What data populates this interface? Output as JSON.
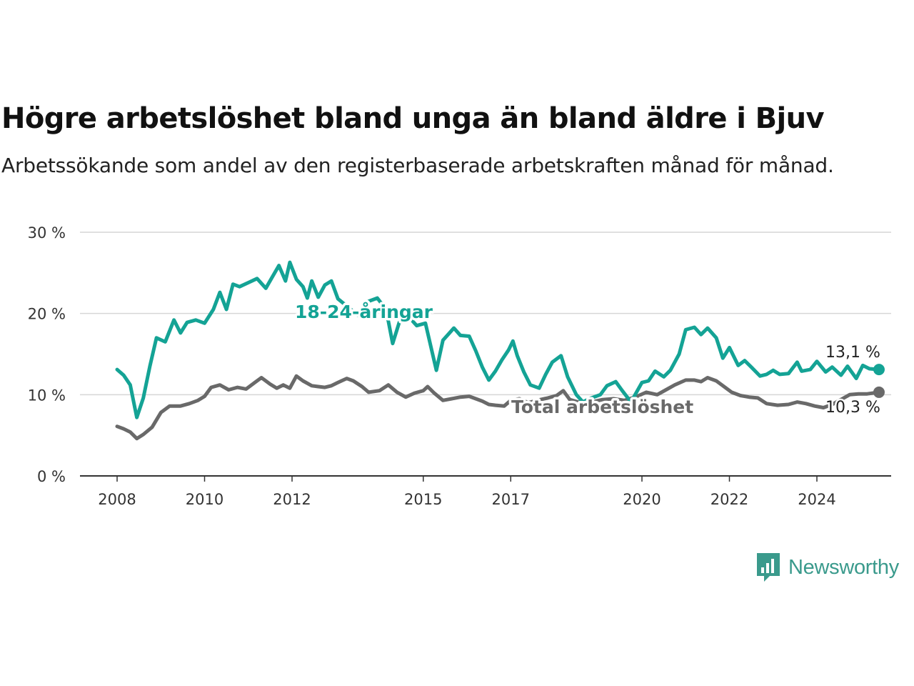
{
  "title": "Högre arbetslöshet bland unga än bland äldre i Bjuv",
  "subtitle": "Arbetssökande som andel av den registerbaserade arbetskraften månad för månad.",
  "brand": "Newsworthy",
  "chart_data": {
    "type": "line",
    "title": "Högre arbetslöshet bland unga än bland äldre i Bjuv",
    "subtitle": "Arbetssökande som andel av den registerbaserade arbetskraften månad för månad.",
    "ylim": [
      0,
      30
    ],
    "yticks": [
      0,
      10,
      20,
      30
    ],
    "ytick_labels": [
      "0 %",
      "10 %",
      "20 %",
      "30 %"
    ],
    "xticks": [
      2008,
      2010,
      2012,
      2015,
      2017,
      2020,
      2022,
      2024
    ],
    "xlim": [
      2007.8,
      2026.3
    ],
    "grid": true,
    "series": [
      {
        "name": "18-24-åringar",
        "color": "#14a395",
        "end_label": "13,1 %",
        "points": [
          [
            2008.0,
            13.1
          ],
          [
            2008.15,
            12.4
          ],
          [
            2008.3,
            11.2
          ],
          [
            2008.45,
            7.2
          ],
          [
            2008.6,
            9.6
          ],
          [
            2008.75,
            13.5
          ],
          [
            2008.9,
            17.0
          ],
          [
            2009.1,
            16.5
          ],
          [
            2009.3,
            19.2
          ],
          [
            2009.45,
            17.6
          ],
          [
            2009.6,
            18.9
          ],
          [
            2009.8,
            19.2
          ],
          [
            2010.0,
            18.8
          ],
          [
            2010.2,
            20.5
          ],
          [
            2010.35,
            22.6
          ],
          [
            2010.5,
            20.5
          ],
          [
            2010.65,
            23.6
          ],
          [
            2010.8,
            23.3
          ],
          [
            2011.0,
            23.8
          ],
          [
            2011.2,
            24.3
          ],
          [
            2011.4,
            23.1
          ],
          [
            2011.55,
            24.5
          ],
          [
            2011.7,
            25.9
          ],
          [
            2011.85,
            24.0
          ],
          [
            2011.95,
            26.3
          ],
          [
            2012.1,
            24.2
          ],
          [
            2012.25,
            23.3
          ],
          [
            2012.35,
            21.9
          ],
          [
            2012.45,
            24.0
          ],
          [
            2012.6,
            22.0
          ],
          [
            2012.75,
            23.5
          ],
          [
            2012.9,
            24.0
          ],
          [
            2013.05,
            21.8
          ],
          [
            2013.3,
            20.7
          ],
          [
            2013.5,
            19.8
          ],
          [
            2013.7,
            21.4
          ],
          [
            2013.95,
            21.9
          ],
          [
            2014.15,
            20.5
          ],
          [
            2014.3,
            16.3
          ],
          [
            2014.45,
            18.9
          ],
          [
            2014.7,
            19.4
          ],
          [
            2014.85,
            18.5
          ],
          [
            2015.05,
            18.8
          ],
          [
            2015.3,
            13.0
          ],
          [
            2015.45,
            16.7
          ],
          [
            2015.6,
            17.6
          ],
          [
            2015.7,
            18.2
          ],
          [
            2015.85,
            17.3
          ],
          [
            2016.05,
            17.2
          ],
          [
            2016.2,
            15.4
          ],
          [
            2016.35,
            13.4
          ],
          [
            2016.5,
            11.8
          ],
          [
            2016.65,
            12.9
          ],
          [
            2016.8,
            14.3
          ],
          [
            2016.95,
            15.5
          ],
          [
            2017.05,
            16.6
          ],
          [
            2017.15,
            14.8
          ],
          [
            2017.3,
            12.8
          ],
          [
            2017.45,
            11.2
          ],
          [
            2017.65,
            10.8
          ],
          [
            2017.8,
            12.5
          ],
          [
            2017.95,
            14.0
          ],
          [
            2018.15,
            14.8
          ],
          [
            2018.3,
            12.2
          ],
          [
            2018.5,
            10.0
          ],
          [
            2018.65,
            9.1
          ],
          [
            2018.8,
            9.5
          ],
          [
            2019.05,
            10.0
          ],
          [
            2019.2,
            11.1
          ],
          [
            2019.4,
            11.6
          ],
          [
            2019.55,
            10.5
          ],
          [
            2019.75,
            9.1
          ],
          [
            2020.0,
            11.5
          ],
          [
            2020.15,
            11.7
          ],
          [
            2020.3,
            12.9
          ],
          [
            2020.5,
            12.2
          ],
          [
            2020.65,
            13.0
          ],
          [
            2020.85,
            15.0
          ],
          [
            2021.0,
            18.0
          ],
          [
            2021.2,
            18.3
          ],
          [
            2021.35,
            17.4
          ],
          [
            2021.5,
            18.2
          ],
          [
            2021.7,
            17.0
          ],
          [
            2021.85,
            14.5
          ],
          [
            2022.0,
            15.8
          ],
          [
            2022.2,
            13.6
          ],
          [
            2022.35,
            14.2
          ],
          [
            2022.5,
            13.4
          ],
          [
            2022.7,
            12.3
          ],
          [
            2022.85,
            12.5
          ],
          [
            2023.0,
            13.0
          ],
          [
            2023.15,
            12.5
          ],
          [
            2023.35,
            12.6
          ],
          [
            2023.55,
            14.0
          ],
          [
            2023.65,
            12.9
          ],
          [
            2023.85,
            13.1
          ],
          [
            2024.0,
            14.1
          ],
          [
            2024.2,
            12.8
          ],
          [
            2024.35,
            13.4
          ],
          [
            2024.55,
            12.4
          ],
          [
            2024.7,
            13.5
          ],
          [
            2024.9,
            12.0
          ],
          [
            2025.05,
            13.6
          ],
          [
            2025.2,
            13.2
          ],
          [
            2025.42,
            13.1
          ]
        ]
      },
      {
        "name": "Total arbetslöshet",
        "color": "#696969",
        "end_label": "10,3 %",
        "points": [
          [
            2008.0,
            6.1
          ],
          [
            2008.15,
            5.8
          ],
          [
            2008.3,
            5.4
          ],
          [
            2008.45,
            4.6
          ],
          [
            2008.6,
            5.1
          ],
          [
            2008.8,
            6.0
          ],
          [
            2009.0,
            7.8
          ],
          [
            2009.2,
            8.6
          ],
          [
            2009.45,
            8.6
          ],
          [
            2009.65,
            8.9
          ],
          [
            2009.85,
            9.3
          ],
          [
            2010.0,
            9.8
          ],
          [
            2010.15,
            10.9
          ],
          [
            2010.35,
            11.2
          ],
          [
            2010.55,
            10.6
          ],
          [
            2010.75,
            10.9
          ],
          [
            2010.95,
            10.7
          ],
          [
            2011.15,
            11.5
          ],
          [
            2011.3,
            12.1
          ],
          [
            2011.5,
            11.3
          ],
          [
            2011.65,
            10.8
          ],
          [
            2011.8,
            11.2
          ],
          [
            2011.95,
            10.8
          ],
          [
            2012.1,
            12.3
          ],
          [
            2012.25,
            11.7
          ],
          [
            2012.45,
            11.1
          ],
          [
            2012.6,
            11.0
          ],
          [
            2012.75,
            10.9
          ],
          [
            2012.9,
            11.1
          ],
          [
            2013.05,
            11.5
          ],
          [
            2013.25,
            12.0
          ],
          [
            2013.4,
            11.7
          ],
          [
            2013.6,
            11.0
          ],
          [
            2013.75,
            10.3
          ],
          [
            2014.0,
            10.5
          ],
          [
            2014.2,
            11.2
          ],
          [
            2014.4,
            10.3
          ],
          [
            2014.6,
            9.7
          ],
          [
            2014.8,
            10.2
          ],
          [
            2015.0,
            10.5
          ],
          [
            2015.1,
            11.0
          ],
          [
            2015.25,
            10.2
          ],
          [
            2015.45,
            9.3
          ],
          [
            2015.65,
            9.5
          ],
          [
            2015.85,
            9.7
          ],
          [
            2016.05,
            9.8
          ],
          [
            2016.2,
            9.5
          ],
          [
            2016.35,
            9.2
          ],
          [
            2016.5,
            8.8
          ],
          [
            2016.65,
            8.7
          ],
          [
            2016.85,
            8.6
          ],
          [
            2017.0,
            9.3
          ],
          [
            2017.2,
            9.5
          ],
          [
            2017.4,
            9.0
          ],
          [
            2017.6,
            9.3
          ],
          [
            2017.85,
            9.6
          ],
          [
            2018.05,
            9.9
          ],
          [
            2018.2,
            10.5
          ],
          [
            2018.35,
            9.4
          ],
          [
            2018.6,
            9.0
          ],
          [
            2018.85,
            9.1
          ],
          [
            2019.1,
            9.4
          ],
          [
            2019.35,
            9.5
          ],
          [
            2019.6,
            9.3
          ],
          [
            2019.85,
            9.7
          ],
          [
            2020.1,
            10.3
          ],
          [
            2020.35,
            10.0
          ],
          [
            2020.55,
            10.6
          ],
          [
            2020.75,
            11.2
          ],
          [
            2021.0,
            11.8
          ],
          [
            2021.2,
            11.8
          ],
          [
            2021.35,
            11.6
          ],
          [
            2021.5,
            12.1
          ],
          [
            2021.7,
            11.7
          ],
          [
            2021.85,
            11.1
          ],
          [
            2022.05,
            10.3
          ],
          [
            2022.25,
            9.9
          ],
          [
            2022.45,
            9.7
          ],
          [
            2022.65,
            9.6
          ],
          [
            2022.85,
            8.9
          ],
          [
            2023.1,
            8.7
          ],
          [
            2023.35,
            8.8
          ],
          [
            2023.55,
            9.1
          ],
          [
            2023.75,
            8.9
          ],
          [
            2023.95,
            8.6
          ],
          [
            2024.15,
            8.4
          ],
          [
            2024.35,
            8.8
          ],
          [
            2024.55,
            9.4
          ],
          [
            2024.75,
            10.0
          ],
          [
            2024.95,
            10.1
          ],
          [
            2025.15,
            10.1
          ],
          [
            2025.42,
            10.3
          ]
        ]
      }
    ]
  }
}
